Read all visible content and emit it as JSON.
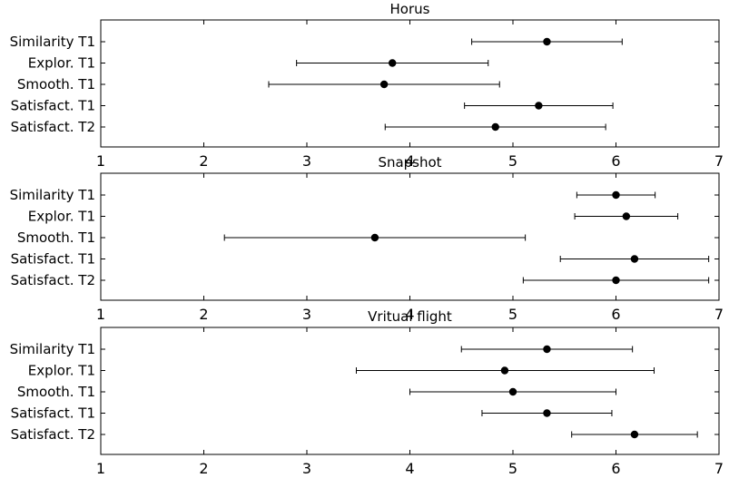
{
  "chart_data": [
    {
      "type": "scatter",
      "title": "Horus",
      "categories": [
        "Similarity T1",
        "Explor. T1",
        "Smooth. T1",
        "Satisfact. T1",
        "Satisfact. T2"
      ],
      "values": [
        5.33,
        3.83,
        3.75,
        5.25,
        4.83
      ],
      "error_low": [
        4.6,
        2.9,
        2.63,
        4.53,
        3.76
      ],
      "error_high": [
        6.06,
        4.76,
        4.87,
        5.97,
        5.9
      ],
      "xlim": [
        1,
        7
      ],
      "xticks": [
        "1",
        "2",
        "3",
        "4",
        "5",
        "6",
        "7"
      ],
      "grid": false
    },
    {
      "type": "scatter",
      "title": "Snapshot",
      "categories": [
        "Similarity T1",
        "Explor. T1",
        "Smooth. T1",
        "Satisfact. T1",
        "Satisfact. T2"
      ],
      "values": [
        6.0,
        6.1,
        3.66,
        6.18,
        6.0
      ],
      "error_low": [
        5.62,
        5.6,
        2.2,
        5.46,
        5.1
      ],
      "error_high": [
        6.38,
        6.6,
        5.12,
        6.9,
        6.9
      ],
      "xlim": [
        1,
        7
      ],
      "xticks": [
        "1",
        "2",
        "3",
        "4",
        "5",
        "6",
        "7"
      ],
      "grid": false
    },
    {
      "type": "scatter",
      "title": "Vritual flight",
      "categories": [
        "Similarity T1",
        "Explor. T1",
        "Smooth. T1",
        "Satisfact. T1",
        "Satisfact. T2"
      ],
      "values": [
        5.33,
        4.92,
        5.0,
        5.33,
        6.18
      ],
      "error_low": [
        4.5,
        3.48,
        4.0,
        4.7,
        5.57
      ],
      "error_high": [
        6.16,
        6.37,
        6.0,
        5.96,
        6.79
      ],
      "xlim": [
        1,
        7
      ],
      "xticks": [
        "1",
        "2",
        "3",
        "4",
        "5",
        "6",
        "7"
      ],
      "grid": false
    }
  ]
}
